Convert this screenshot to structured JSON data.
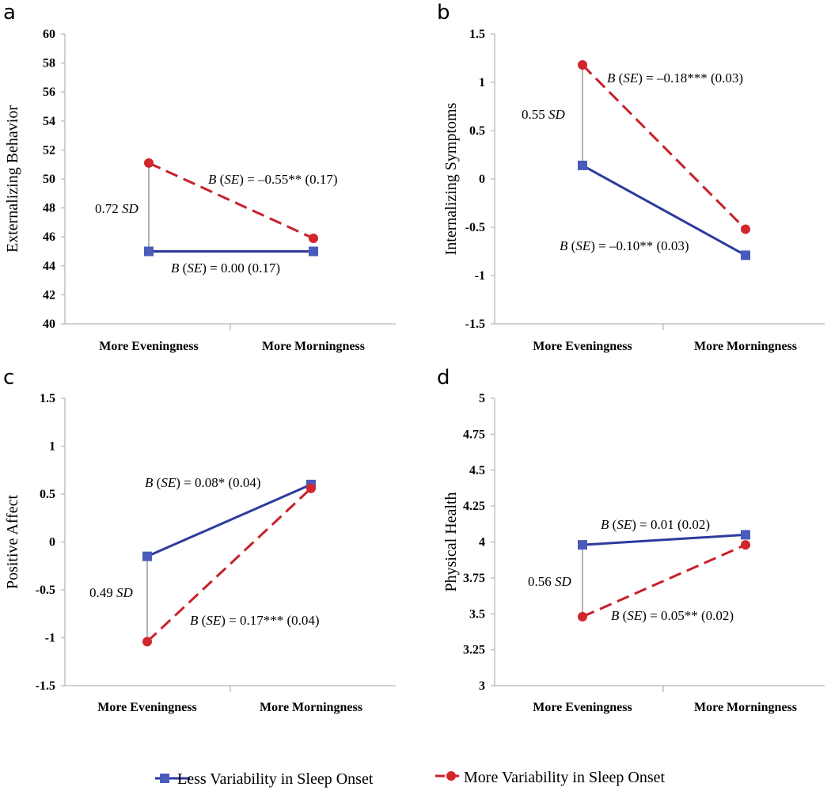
{
  "chart_data": [
    {
      "panel": "a",
      "type": "line",
      "categories": [
        "More Eveningness",
        "More Morningness"
      ],
      "ylabel": "Externalizing Behavior",
      "ylim": [
        40,
        60
      ],
      "yticks": [
        "40",
        "42",
        "44",
        "46",
        "48",
        "50",
        "52",
        "54",
        "56",
        "58",
        "60"
      ],
      "series": [
        {
          "name": "Less Variability in Sleep Onset",
          "values": [
            45.0,
            45.0
          ]
        },
        {
          "name": "More Variability in Sleep Onset",
          "values": [
            51.1,
            45.9
          ]
        }
      ],
      "annotations": {
        "less_b": "B (SE) = 0.00 (0.17)",
        "more_b": "B (SE) = –0.55** (0.17)",
        "sd": "0.72 SD"
      }
    },
    {
      "panel": "b",
      "type": "line",
      "categories": [
        "More Eveningness",
        "More Morningness"
      ],
      "ylabel": "Internalizing Symptoms",
      "ylim": [
        -1.5,
        1.5
      ],
      "yticks": [
        "-1.5",
        "-1",
        "-0.5",
        "0",
        "0.5",
        "1",
        "1.5"
      ],
      "series": [
        {
          "name": "Less Variability in Sleep Onset",
          "values": [
            0.14,
            -0.79
          ]
        },
        {
          "name": "More Variability in Sleep Onset",
          "values": [
            1.18,
            -0.52
          ]
        }
      ],
      "annotations": {
        "less_b": "B (SE) = –0.10** (0.03)",
        "more_b": "B (SE) = –0.18*** (0.03)",
        "sd": "0.55 SD"
      }
    },
    {
      "panel": "c",
      "type": "line",
      "categories": [
        "More Eveningness",
        "More Morningness"
      ],
      "ylabel": "Positive Affect",
      "ylim": [
        -1.5,
        1.5
      ],
      "yticks": [
        "-1.5",
        "-1",
        "-0.5",
        "0",
        "0.5",
        "1",
        "1.5"
      ],
      "series": [
        {
          "name": "Less Variability in Sleep Onset",
          "values": [
            -0.15,
            0.6
          ]
        },
        {
          "name": "More Variability in Sleep Onset",
          "values": [
            -1.04,
            0.56
          ]
        }
      ],
      "annotations": {
        "less_b": "B (SE) = 0.08* (0.04)",
        "more_b": "B (SE) = 0.17*** (0.04)",
        "sd": "0.49 SD"
      }
    },
    {
      "panel": "d",
      "type": "line",
      "categories": [
        "More Eveningness",
        "More Morningness"
      ],
      "ylabel": "Physical Health",
      "ylim": [
        3,
        5
      ],
      "yticks": [
        "3",
        "3.25",
        "3.5",
        "3.75",
        "4",
        "4.25",
        "4.5",
        "4.75",
        "5"
      ],
      "series": [
        {
          "name": "Less Variability in Sleep Onset",
          "values": [
            3.98,
            4.05
          ]
        },
        {
          "name": "More Variability in Sleep Onset",
          "values": [
            3.48,
            3.98
          ]
        }
      ],
      "annotations": {
        "less_b": "B (SE) = 0.01 (0.02)",
        "more_b": "B (SE) = 0.05** (0.02)",
        "sd": "0.56 SD"
      }
    }
  ],
  "legend": {
    "less": "Less Variability in Sleep Onset",
    "more": "More Variability in Sleep Onset"
  },
  "colors": {
    "less": "#2e3a9e",
    "less_marker": "#4a5bbb",
    "more": "#c8202a",
    "more_marker": "#d3252c"
  }
}
